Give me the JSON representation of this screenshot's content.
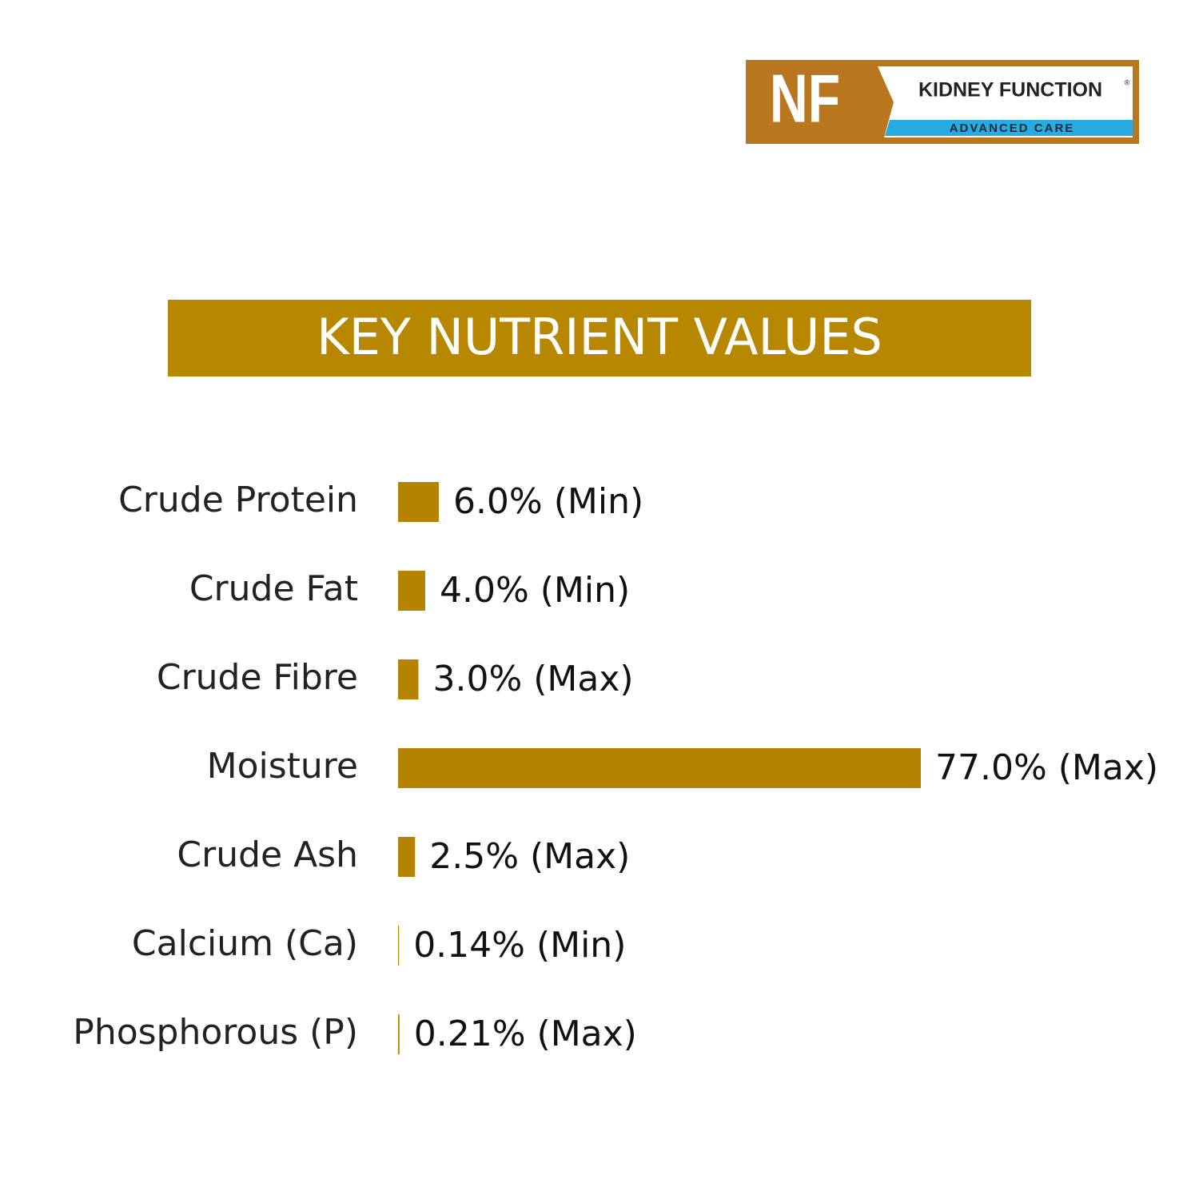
{
  "logo": {
    "mark": "NF",
    "name": "KIDNEY FUNCTION",
    "registered": "®",
    "tagline": "ADVANCED CARE"
  },
  "chart_data": {
    "type": "bar",
    "orientation": "horizontal",
    "title": "KEY NUTRIENT VALUES",
    "categories": [
      "Crude Protein",
      "Crude Fat",
      "Crude Fibre",
      "Moisture",
      "Crude Ash",
      "Calcium (Ca)",
      "Phosphorous (P)"
    ],
    "values": [
      6.0,
      4.0,
      3.0,
      77.0,
      2.5,
      0.14,
      0.21
    ],
    "value_labels": [
      "6.0% (Min)",
      "4.0% (Min)",
      "3.0% (Max)",
      "77.0% (Max)",
      "2.5% (Max)",
      "0.14% (Min)",
      "0.21% (Max)"
    ],
    "color": "#b58300"
  }
}
